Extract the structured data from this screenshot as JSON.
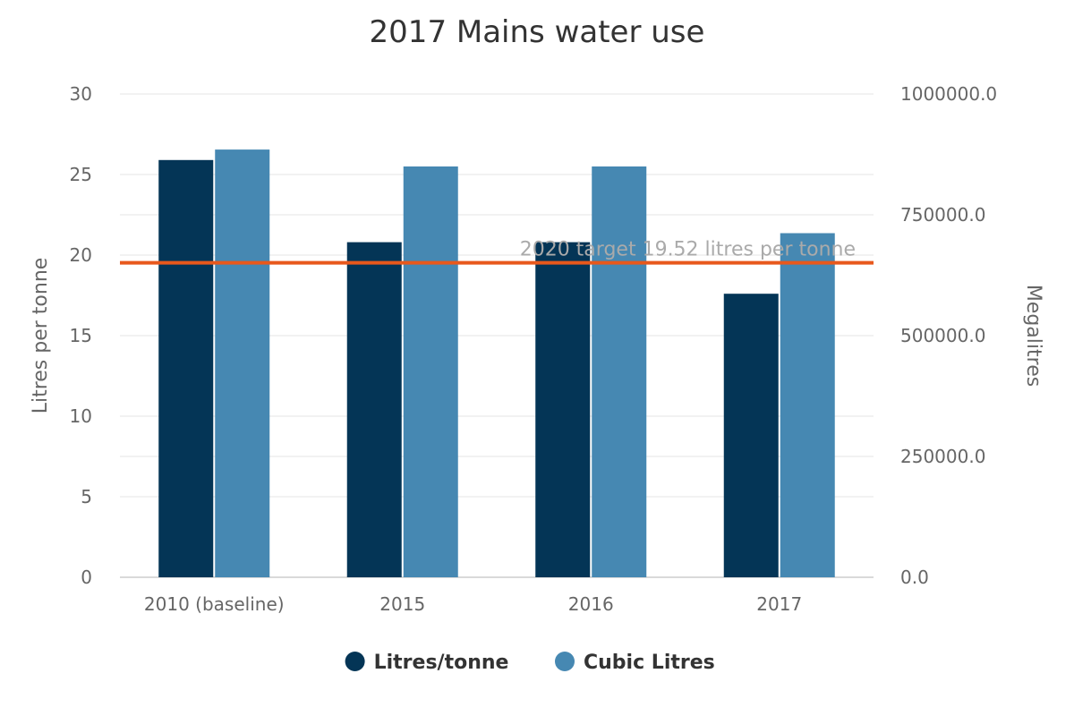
{
  "chart_data": {
    "type": "bar",
    "title": "2017 Mains water use",
    "categories": [
      "2010 (baseline)",
      "2015",
      "2016",
      "2017"
    ],
    "series": [
      {
        "name": "Litres/tonne",
        "axis": "left",
        "color": "#043556",
        "values": [
          25.9,
          20.8,
          20.8,
          17.6
        ]
      },
      {
        "name": "Cubic Litres",
        "axis": "right",
        "color": "#4688b2",
        "values": [
          885000,
          850000,
          850000,
          712000
        ]
      }
    ],
    "ylabel": "Litres per tonne",
    "ylabel_right": "Megalitres",
    "ylim": [
      0,
      30
    ],
    "ylim_right": [
      0,
      1000000
    ],
    "yticks": [
      0,
      5,
      10,
      15,
      20,
      25,
      30
    ],
    "yticks_right": [
      0,
      250000,
      500000,
      750000,
      1000000
    ],
    "yticks_right_labels": [
      "0.0",
      "250000.0",
      "500000.0",
      "750000.0",
      "1000000.0"
    ],
    "grid": true,
    "legend_position": "bottom-center",
    "reference_line": {
      "value": 19.52,
      "label": "2020 target 19.52 litres per tonne",
      "color": "#e8581c"
    }
  }
}
